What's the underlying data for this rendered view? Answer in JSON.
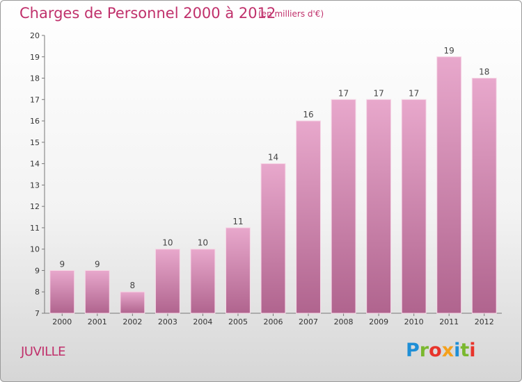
{
  "header": {
    "title": "Charges de Personnel 2000 à 2012",
    "subtitle": "(en milliers d'€)"
  },
  "commune": "JUVILLE",
  "logo": {
    "text": "Proxiti",
    "colors": [
      "#1f8fd6",
      "#7ab82e",
      "#e8342b",
      "#f4a11d",
      "#1f8fd6",
      "#7ab82e",
      "#e8342b"
    ]
  },
  "colors": {
    "accent": "#c0306b",
    "bar_top": "#e8a8cc",
    "bar_bottom": "#b0648e"
  },
  "chart_data": {
    "type": "bar",
    "title": "Charges de Personnel 2000 à 2012",
    "subtitle": "(en milliers d'€)",
    "xlabel": "",
    "ylabel": "",
    "categories": [
      "2000",
      "2001",
      "2002",
      "2003",
      "2004",
      "2005",
      "2006",
      "2007",
      "2008",
      "2009",
      "2010",
      "2011",
      "2012"
    ],
    "values": [
      9,
      9,
      8,
      10,
      10,
      11,
      14,
      16,
      17,
      17,
      17,
      19,
      18
    ],
    "ylim": [
      7,
      20
    ],
    "yticks": [
      7,
      8,
      9,
      10,
      11,
      12,
      13,
      14,
      15,
      16,
      17,
      18,
      19,
      20
    ],
    "grid": false,
    "data_labels": true
  }
}
